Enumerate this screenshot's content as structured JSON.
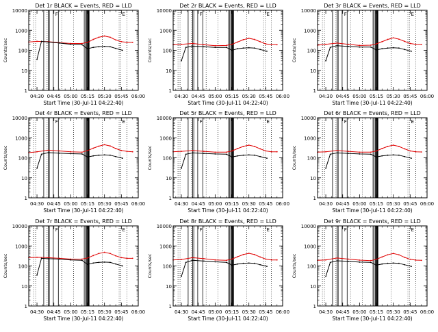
{
  "chart_data": {
    "type": "line",
    "grid_rows": 3,
    "grid_cols": 3,
    "xlabel": "Start Time (30-Jul-11 04:22:40)",
    "ylabel": "Counts/sec",
    "x_ticks": [
      "04:30",
      "04:45",
      "05:00",
      "05:15",
      "05:30",
      "05:45",
      "06:00"
    ],
    "x_tick_minutes": [
      30,
      45,
      60,
      75,
      90,
      105,
      120
    ],
    "xlim_minutes": [
      22.67,
      120
    ],
    "y_ticks": [
      "1",
      "10",
      "100",
      "1000",
      "10000"
    ],
    "y_scale": "log",
    "ylim": [
      1,
      10000
    ],
    "series_colors": {
      "events": "#000000",
      "lld": "#e00000"
    },
    "flag_letters": {
      "left": "F",
      "right": "E"
    },
    "panels": [
      {
        "title": "Det 1r BLACK = Events, RED = LLD",
        "lld": {
          "x": [
            22.67,
            30,
            40,
            50,
            60,
            70,
            75,
            80,
            85,
            90,
            95,
            100,
            105,
            110,
            115
          ],
          "y": [
            260,
            280,
            270,
            240,
            220,
            220,
            250,
            350,
            450,
            520,
            450,
            330,
            270,
            250,
            250
          ]
        },
        "events": {
          "x": [
            30,
            34,
            40,
            50,
            60,
            70,
            75,
            80,
            85,
            90,
            95,
            100,
            106
          ],
          "y": [
            35,
            280,
            260,
            230,
            200,
            190,
            120,
            140,
            150,
            155,
            150,
            125,
            100
          ]
        }
      },
      {
        "title": "Det 2r BLACK = Events, RED = LLD",
        "lld": {
          "x": [
            22.67,
            30,
            40,
            50,
            60,
            70,
            75,
            80,
            85,
            90,
            95,
            100,
            105,
            110,
            115
          ],
          "y": [
            190,
            200,
            220,
            190,
            170,
            175,
            200,
            260,
            340,
            400,
            350,
            270,
            210,
            190,
            190
          ]
        },
        "events": {
          "x": [
            30,
            34,
            40,
            50,
            60,
            70,
            75,
            80,
            85,
            90,
            95,
            100,
            106
          ],
          "y": [
            30,
            140,
            160,
            150,
            140,
            140,
            100,
            120,
            130,
            135,
            130,
            110,
            90
          ]
        }
      },
      {
        "title": "Det 3r BLACK = Events, RED = LLD",
        "lld": {
          "x": [
            22.67,
            30,
            40,
            50,
            60,
            70,
            75,
            80,
            85,
            90,
            95,
            100,
            105,
            110,
            115
          ],
          "y": [
            180,
            200,
            230,
            200,
            175,
            180,
            210,
            270,
            350,
            420,
            360,
            280,
            220,
            200,
            195
          ]
        },
        "events": {
          "x": [
            30,
            34,
            40,
            50,
            60,
            70,
            75,
            80,
            85,
            90,
            95,
            100,
            106
          ],
          "y": [
            30,
            140,
            170,
            155,
            145,
            145,
            105,
            120,
            130,
            135,
            130,
            110,
            90
          ]
        }
      },
      {
        "title": "Det 4r BLACK = Events, RED = LLD",
        "lld": {
          "x": [
            22.67,
            30,
            40,
            50,
            60,
            70,
            75,
            80,
            85,
            90,
            95,
            100,
            105,
            110,
            115
          ],
          "y": [
            180,
            200,
            240,
            220,
            200,
            190,
            230,
            300,
            380,
            450,
            390,
            290,
            230,
            210,
            200
          ]
        },
        "events": {
          "x": [
            30,
            34,
            40,
            50,
            60,
            70,
            75,
            80,
            85,
            90,
            95,
            100,
            106
          ],
          "y": [
            30,
            150,
            180,
            170,
            160,
            155,
            110,
            125,
            135,
            140,
            135,
            115,
            95
          ]
        }
      },
      {
        "title": "Det 5r BLACK = Events, RED = LLD",
        "lld": {
          "x": [
            22.67,
            30,
            40,
            50,
            60,
            70,
            75,
            80,
            85,
            90,
            95,
            100,
            105,
            110,
            115
          ],
          "y": [
            200,
            210,
            230,
            210,
            190,
            190,
            220,
            290,
            370,
            430,
            370,
            280,
            220,
            200,
            200
          ]
        },
        "events": {
          "x": [
            30,
            34,
            40,
            50,
            60,
            70,
            75,
            80,
            85,
            90,
            95,
            100,
            106
          ],
          "y": [
            30,
            150,
            175,
            165,
            155,
            150,
            110,
            125,
            135,
            140,
            135,
            115,
            95
          ]
        }
      },
      {
        "title": "Det 6r BLACK = Events, RED = LLD",
        "lld": {
          "x": [
            22.67,
            30,
            40,
            50,
            60,
            70,
            75,
            80,
            85,
            90,
            95,
            100,
            105,
            110,
            115
          ],
          "y": [
            190,
            200,
            230,
            210,
            190,
            190,
            220,
            290,
            370,
            430,
            370,
            280,
            220,
            200,
            195
          ]
        },
        "events": {
          "x": [
            30,
            34,
            40,
            50,
            60,
            70,
            75,
            80,
            85,
            90,
            95,
            100,
            106
          ],
          "y": [
            30,
            150,
            175,
            165,
            155,
            150,
            110,
            125,
            135,
            140,
            135,
            115,
            95
          ]
        }
      },
      {
        "title": "Det 7r BLACK = Events, RED = LLD",
        "lld": {
          "x": [
            22.67,
            30,
            40,
            50,
            60,
            70,
            75,
            80,
            85,
            90,
            95,
            100,
            105,
            110,
            115
          ],
          "y": [
            260,
            270,
            260,
            240,
            220,
            220,
            250,
            330,
            420,
            480,
            420,
            320,
            260,
            240,
            240
          ]
        },
        "events": {
          "x": [
            30,
            34,
            40,
            50,
            60,
            70,
            75,
            80,
            85,
            90,
            95,
            100,
            106
          ],
          "y": [
            35,
            240,
            230,
            220,
            200,
            190,
            120,
            140,
            150,
            155,
            150,
            125,
            100
          ]
        }
      },
      {
        "title": "Det 8r BLACK = Events, RED = LLD",
        "lld": {
          "x": [
            22.67,
            30,
            40,
            50,
            60,
            70,
            75,
            80,
            85,
            90,
            95,
            100,
            105,
            110,
            115
          ],
          "y": [
            200,
            210,
            260,
            230,
            200,
            190,
            220,
            290,
            370,
            430,
            370,
            280,
            220,
            200,
            200
          ]
        },
        "events": {
          "x": [
            30,
            34,
            40,
            50,
            60,
            70,
            75,
            80,
            85,
            90,
            95,
            100,
            106
          ],
          "y": [
            30,
            150,
            190,
            175,
            160,
            150,
            110,
            125,
            135,
            140,
            135,
            115,
            95
          ]
        }
      },
      {
        "title": "Det 9r BLACK = Events, RED = LLD",
        "lld": {
          "x": [
            22.67,
            30,
            40,
            50,
            60,
            70,
            75,
            80,
            85,
            90,
            95,
            100,
            105,
            110,
            115
          ],
          "y": [
            190,
            200,
            250,
            220,
            195,
            185,
            215,
            280,
            360,
            420,
            360,
            270,
            215,
            195,
            190
          ]
        },
        "events": {
          "x": [
            30,
            34,
            40,
            50,
            60,
            70,
            75,
            80,
            85,
            90,
            95,
            100,
            106
          ],
          "y": [
            30,
            150,
            180,
            170,
            155,
            150,
            110,
            125,
            135,
            140,
            135,
            115,
            95
          ]
        }
      }
    ]
  }
}
